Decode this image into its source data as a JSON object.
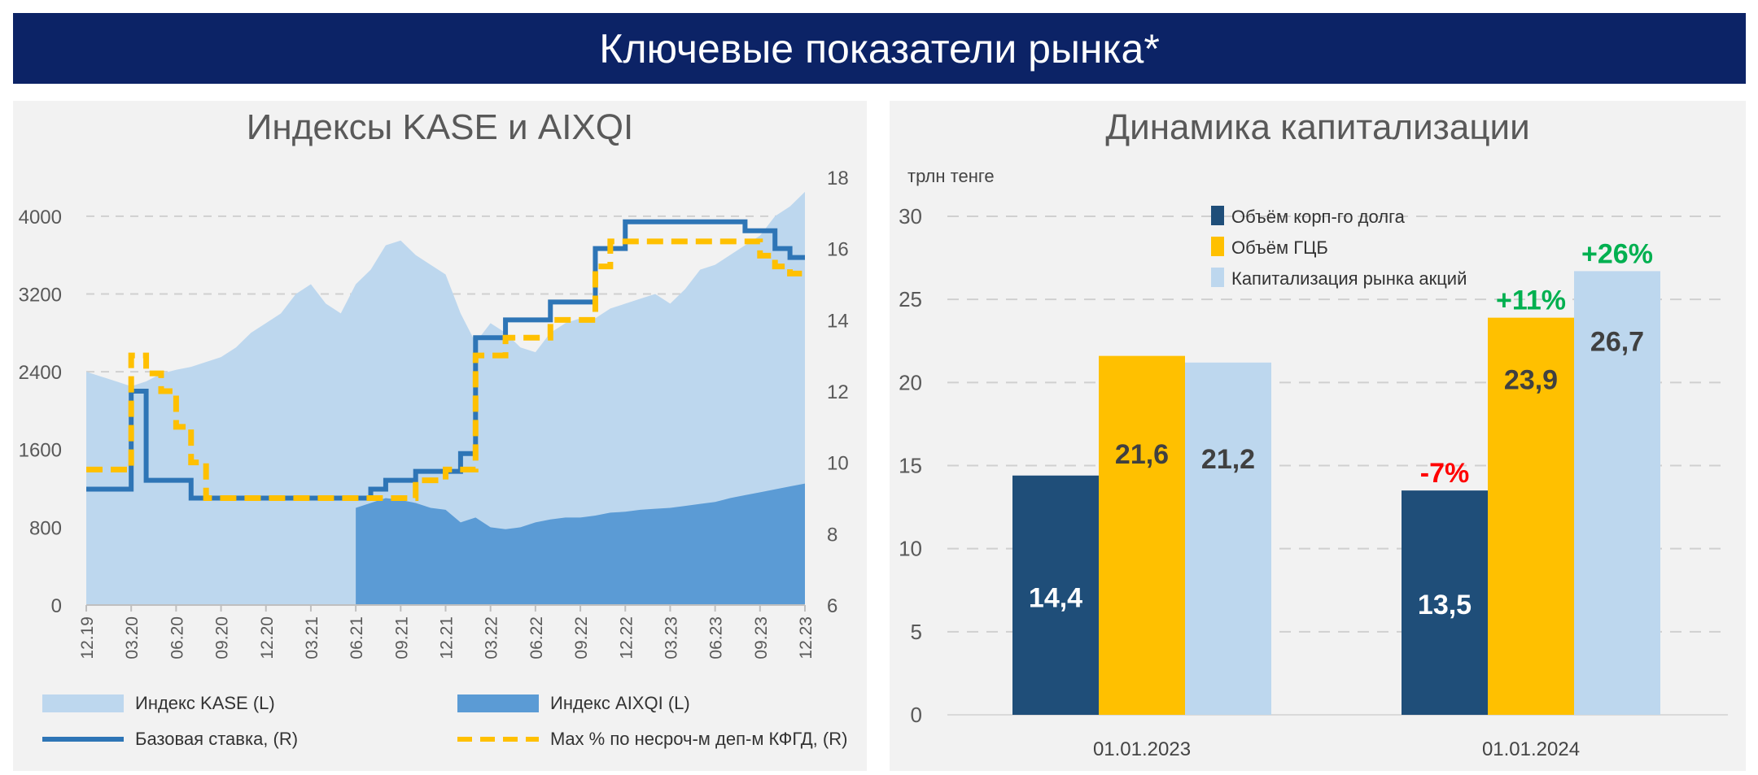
{
  "header": {
    "title": "Ключевые показатели рынка*"
  },
  "colors": {
    "header": "#0c2366",
    "kase": "#bdd7ee",
    "aixqi": "#5b9bd5",
    "base_rate": "#2e75b6",
    "kfgd": "#ffc000",
    "corp_debt": "#1f4e79",
    "gov": "#ffc000",
    "equity": "#bdd7ee",
    "positive": "#00b050",
    "negative": "#ff0000"
  },
  "chart_data": [
    {
      "type": "area",
      "title": "Индексы KASE и AIXQI",
      "x_ticks": [
        "12.19",
        "03.20",
        "06.20",
        "09.20",
        "12.20",
        "03.21",
        "06.21",
        "09.21",
        "12.21",
        "03.22",
        "06.22",
        "09.22",
        "12.22",
        "03.23",
        "06.23",
        "09.23",
        "12.23"
      ],
      "x_start": "2019-12",
      "x_end": "2023-12",
      "x_step": "month",
      "y_left": {
        "ticks": [
          "0",
          "800",
          "1600",
          "2400",
          "3200",
          "4000"
        ],
        "range": [
          0,
          4400
        ]
      },
      "y_right": {
        "ticks": [
          "6",
          "8",
          "10",
          "12",
          "14",
          "16",
          "18"
        ],
        "range": [
          6,
          18
        ]
      },
      "grid": "horizontal dashed",
      "legend_placement": "bottom",
      "series": [
        {
          "name": "Индекс KASE (L)",
          "axis": "left",
          "kind": "area",
          "start": "2019-12",
          "values": [
            2400,
            2350,
            2300,
            2250,
            2300,
            2380,
            2420,
            2450,
            2500,
            2550,
            2650,
            2800,
            2900,
            3000,
            3200,
            3300,
            3100,
            3000,
            3300,
            3450,
            3700,
            3750,
            3600,
            3500,
            3400,
            3000,
            2700,
            2900,
            2800,
            2650,
            2600,
            2800,
            2900,
            2950,
            2950,
            3050,
            3100,
            3150,
            3200,
            3100,
            3250,
            3450,
            3500,
            3600,
            3700,
            3800,
            4000,
            4100,
            4250
          ]
        },
        {
          "name": "Индекс AIXQI (L)",
          "axis": "left",
          "kind": "area",
          "start": "2021-06",
          "values": [
            1000,
            1050,
            1100,
            1080,
            1050,
            1000,
            980,
            850,
            900,
            800,
            780,
            800,
            850,
            880,
            900,
            900,
            920,
            950,
            960,
            980,
            990,
            1000,
            1020,
            1040,
            1060,
            1100,
            1130,
            1160,
            1190,
            1220,
            1250
          ]
        },
        {
          "name": "Базовая ставка, (R)",
          "axis": "right",
          "kind": "step",
          "start": "2019-12",
          "values": [
            9.25,
            9.25,
            9.25,
            12,
            9.5,
            9.5,
            9.5,
            9,
            9,
            9,
            9,
            9,
            9,
            9,
            9,
            9,
            9,
            9,
            9,
            9.25,
            9.5,
            9.5,
            9.75,
            9.75,
            9.75,
            10.25,
            13.5,
            13.5,
            14,
            14,
            14,
            14.5,
            14.5,
            14.5,
            16,
            16,
            16.75,
            16.75,
            16.75,
            16.75,
            16.75,
            16.75,
            16.75,
            16.75,
            16.5,
            16.5,
            16,
            15.75,
            15.75
          ]
        },
        {
          "name": "Max % по несроч-м деп-м КФГД, (R)",
          "axis": "right",
          "kind": "step-dashed",
          "start": "2019-12",
          "values": [
            9.8,
            9.8,
            9.8,
            13,
            12.5,
            12,
            11,
            10,
            9,
            9,
            9,
            9,
            9,
            9,
            9,
            9,
            9,
            9,
            9,
            9,
            9,
            9,
            9.5,
            9.5,
            9.8,
            9.8,
            13,
            13,
            13.5,
            13.5,
            13.5,
            14,
            14,
            14,
            15.5,
            16.2,
            16.2,
            16.2,
            16.2,
            16.2,
            16.2,
            16.2,
            16.2,
            16.2,
            16.2,
            15.8,
            15.5,
            15.3,
            15.3
          ]
        }
      ]
    },
    {
      "type": "bar",
      "title": "Динамика капитализации",
      "ylabel": "трлн тенге",
      "categories": [
        "01.01.2023",
        "01.01.2024"
      ],
      "y_ticks": [
        "0",
        "5",
        "10",
        "15",
        "20",
        "25",
        "30"
      ],
      "ylim": [
        0,
        30
      ],
      "grid": "horizontal dashed",
      "legend_placement": "top-center",
      "series": [
        {
          "name": "Объём корп-го долга",
          "values": [
            14.4,
            13.5
          ],
          "labels": [
            "14,4",
            "13,5"
          ],
          "change": [
            "",
            "-7%"
          ]
        },
        {
          "name": "Объём ГЦБ",
          "values": [
            21.6,
            23.9
          ],
          "labels": [
            "21,6",
            "23,9"
          ],
          "change": [
            "",
            "+11%"
          ]
        },
        {
          "name": "Капитализация рынка акций",
          "values": [
            21.2,
            26.7
          ],
          "labels": [
            "21,2",
            "26,7"
          ],
          "change": [
            "",
            "+26%"
          ]
        }
      ]
    }
  ]
}
